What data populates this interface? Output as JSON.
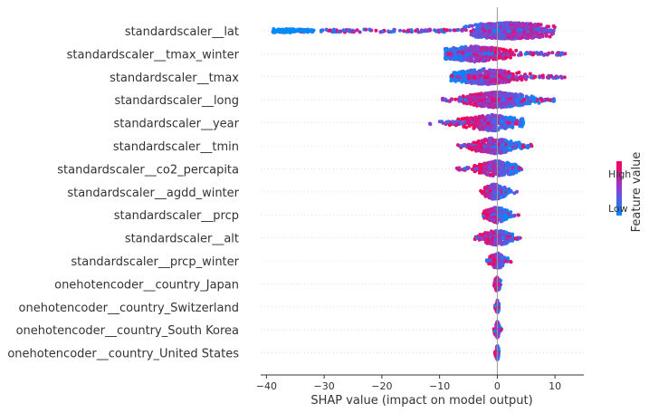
{
  "chart_data": {
    "type": "scatter",
    "subtype": "shap-beeswarm",
    "xlabel": "SHAP value (impact on model output)",
    "xlim": [
      -41,
      15
    ],
    "xticks": [
      -40,
      -30,
      -20,
      -10,
      0,
      10
    ],
    "xtick_labels": [
      "−40",
      "−30",
      "−20",
      "−10",
      "0",
      "10"
    ],
    "colorbar": {
      "label": "Feature value",
      "high_label": "High",
      "low_label": "Low",
      "high_color": "#ff0052",
      "low_color": "#008bfb"
    },
    "features": [
      {
        "name": "standardscaler__lat",
        "min": -39,
        "max": 10,
        "center": 2
      },
      {
        "name": "standardscaler__tmax_winter",
        "min": -9,
        "max": 12,
        "center": -4
      },
      {
        "name": "standardscaler__tmax",
        "min": -8,
        "max": 12,
        "center": -2
      },
      {
        "name": "standardscaler__long",
        "min": -10,
        "max": 10.5,
        "center": 0
      },
      {
        "name": "standardscaler__year",
        "min": -12,
        "max": 4.5,
        "center": -1
      },
      {
        "name": "standardscaler__tmin",
        "min": -7,
        "max": 6,
        "center": -0.5
      },
      {
        "name": "standardscaler__co2_percapita",
        "min": -7,
        "max": 4.5,
        "center": 0
      },
      {
        "name": "standardscaler__agdd_winter",
        "min": -3,
        "max": 3.5,
        "center": -0.5
      },
      {
        "name": "standardscaler__prcp",
        "min": -2.5,
        "max": 4,
        "center": 0
      },
      {
        "name": "standardscaler__alt",
        "min": -4,
        "max": 5,
        "center": 0
      },
      {
        "name": "standardscaler__prcp_winter",
        "min": -2,
        "max": 2.5,
        "center": 0
      },
      {
        "name": "onehotencoder__country_Japan",
        "min": -1,
        "max": 0.6,
        "center": 0
      },
      {
        "name": "onehotencoder__country_Switzerland",
        "min": -0.4,
        "max": 0.3,
        "center": 0
      },
      {
        "name": "onehotencoder__country_South Korea",
        "min": -0.6,
        "max": 0.8,
        "center": 0
      },
      {
        "name": "onehotencoder__country_United States",
        "min": -0.4,
        "max": 0.3,
        "center": 0
      }
    ]
  }
}
